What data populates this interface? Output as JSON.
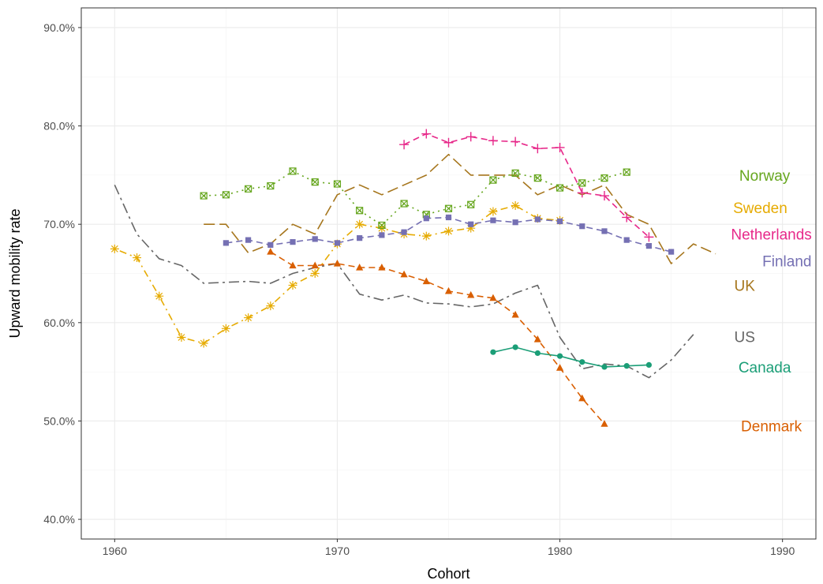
{
  "chart_data": {
    "type": "line",
    "title": "",
    "xlabel": "Cohort",
    "ylabel": "Upward mobility rate",
    "xlim": [
      1958.5,
      1991.5
    ],
    "ylim": [
      38.0,
      92.0
    ],
    "x_ticks": [
      1960,
      1970,
      1980,
      1990
    ],
    "x_tick_labels": [
      "1960",
      "1970",
      "1980",
      "1990"
    ],
    "y_ticks": [
      40,
      50,
      60,
      70,
      80,
      90
    ],
    "y_tick_labels": [
      "40.0%",
      "50.0%",
      "60.0%",
      "70.0%",
      "80.0%",
      "90.0%"
    ],
    "grid": true,
    "legend": "direct labels at right",
    "series": [
      {
        "name": "US",
        "color": "#666666",
        "dash": "longdashdot",
        "marker": "none",
        "x": [
          1960,
          1961,
          1962,
          1963,
          1964,
          1965,
          1966,
          1967,
          1968,
          1969,
          1970,
          1971,
          1972,
          1973,
          1974,
          1975,
          1976,
          1977,
          1978,
          1979,
          1980,
          1981,
          1982,
          1983,
          1984,
          1985,
          1986
        ],
        "y": [
          74.0,
          69.0,
          66.5,
          65.8,
          64.0,
          64.1,
          64.2,
          64.0,
          65.0,
          65.6,
          66.0,
          62.9,
          62.3,
          62.8,
          62.0,
          61.9,
          61.6,
          61.9,
          63.0,
          63.8,
          58.5,
          55.3,
          55.8,
          55.6,
          54.4,
          56.2,
          58.8
        ]
      },
      {
        "name": "UK",
        "color": "#a6761d",
        "dash": "longdash",
        "marker": "none",
        "x": [
          1964,
          1965,
          1966,
          1967,
          1968,
          1969,
          1970,
          1971,
          1972,
          1973,
          1974,
          1975,
          1976,
          1977,
          1978,
          1979,
          1980,
          1981,
          1982,
          1983,
          1984,
          1985,
          1986,
          1987
        ],
        "y": [
          70.0,
          70.0,
          67.1,
          68.0,
          70.0,
          69.0,
          73.0,
          74.0,
          73.0,
          74.0,
          75.0,
          77.1,
          75.0,
          75.0,
          75.0,
          73.0,
          74.0,
          73.0,
          74.0,
          71.0,
          70.0,
          66.0,
          68.0,
          67.0
        ]
      },
      {
        "name": "Sweden",
        "color": "#e6ab02",
        "dash": "dotdash",
        "marker": "asterisk",
        "x": [
          1960,
          1961,
          1962,
          1963,
          1964,
          1965,
          1966,
          1967,
          1968,
          1969,
          1970,
          1971,
          1972,
          1973,
          1974,
          1975,
          1976,
          1977,
          1978,
          1979,
          1980
        ],
        "y": [
          67.5,
          66.6,
          62.7,
          58.5,
          57.9,
          59.4,
          60.5,
          61.7,
          63.8,
          65.0,
          68.0,
          70.0,
          69.6,
          69.0,
          68.8,
          69.3,
          69.6,
          71.3,
          71.9,
          70.6,
          70.4
        ]
      },
      {
        "name": "Norway",
        "color": "#66a61e",
        "dash": "dotted",
        "marker": "boxed-x",
        "x": [
          1964,
          1965,
          1966,
          1967,
          1968,
          1969,
          1970,
          1971,
          1972,
          1973,
          1974,
          1975,
          1976,
          1977,
          1978,
          1979,
          1980,
          1981,
          1982,
          1983
        ],
        "y": [
          72.9,
          73.0,
          73.6,
          73.9,
          75.4,
          74.3,
          74.1,
          71.4,
          69.9,
          72.1,
          71.0,
          71.6,
          72.0,
          74.5,
          75.2,
          74.7,
          73.7,
          74.2,
          74.7,
          75.3
        ]
      },
      {
        "name": "Netherlands",
        "color": "#e7298a",
        "dash": "dashed",
        "marker": "plus",
        "x": [
          1973,
          1974,
          1975,
          1976,
          1977,
          1978,
          1979,
          1980,
          1981,
          1982,
          1983,
          1984
        ],
        "y": [
          78.1,
          79.2,
          78.3,
          78.9,
          78.5,
          78.4,
          77.7,
          77.8,
          73.2,
          72.9,
          70.7,
          68.7
        ]
      },
      {
        "name": "Finland",
        "color": "#7570b3",
        "dash": "dashed",
        "marker": "square",
        "x": [
          1965,
          1966,
          1967,
          1968,
          1969,
          1970,
          1971,
          1972,
          1973,
          1974,
          1975,
          1976,
          1977,
          1978,
          1979,
          1980,
          1981,
          1982,
          1983,
          1984,
          1985
        ],
        "y": [
          68.1,
          68.4,
          67.9,
          68.2,
          68.5,
          68.1,
          68.6,
          68.9,
          69.2,
          70.6,
          70.7,
          70.0,
          70.4,
          70.2,
          70.5,
          70.3,
          69.8,
          69.3,
          68.4,
          67.8,
          67.2
        ]
      },
      {
        "name": "Denmark",
        "color": "#d95f02",
        "dash": "dashed",
        "marker": "triangle",
        "x": [
          1967,
          1968,
          1969,
          1970,
          1971,
          1972,
          1973,
          1974,
          1975,
          1976,
          1977,
          1978,
          1979,
          1980,
          1981,
          1982
        ],
        "y": [
          67.2,
          65.8,
          65.8,
          66.0,
          65.6,
          65.6,
          64.9,
          64.2,
          63.2,
          62.8,
          62.5,
          60.8,
          58.3,
          55.4,
          52.3,
          49.7
        ]
      },
      {
        "name": "Canada",
        "color": "#1b9e77",
        "dash": "solid",
        "marker": "circle",
        "x": [
          1977,
          1978,
          1979,
          1980,
          1981,
          1982,
          1983,
          1984
        ],
        "y": [
          57.0,
          57.5,
          56.9,
          56.6,
          56.0,
          55.5,
          55.6,
          55.7
        ]
      }
    ],
    "labels": [
      {
        "text": "Norway",
        "x": 1989.2,
        "y": 75.0,
        "color": "#66a61e",
        "anchor": "middle"
      },
      {
        "text": "Sweden",
        "x": 1989.0,
        "y": 71.7,
        "color": "#e6ab02",
        "anchor": "middle"
      },
      {
        "text": "Netherlands",
        "x": 1989.5,
        "y": 69.0,
        "color": "#e7298a",
        "anchor": "middle"
      },
      {
        "text": "Finland",
        "x": 1990.2,
        "y": 66.3,
        "color": "#7570b3",
        "anchor": "middle"
      },
      {
        "text": "UK",
        "x": 1988.3,
        "y": 63.8,
        "color": "#a6761d",
        "anchor": "middle"
      },
      {
        "text": "US",
        "x": 1988.3,
        "y": 58.6,
        "color": "#666666",
        "anchor": "middle"
      },
      {
        "text": "Canada",
        "x": 1989.2,
        "y": 55.5,
        "color": "#1b9e77",
        "anchor": "middle"
      },
      {
        "text": "Denmark",
        "x": 1989.5,
        "y": 49.5,
        "color": "#d95f02",
        "anchor": "middle"
      }
    ]
  }
}
